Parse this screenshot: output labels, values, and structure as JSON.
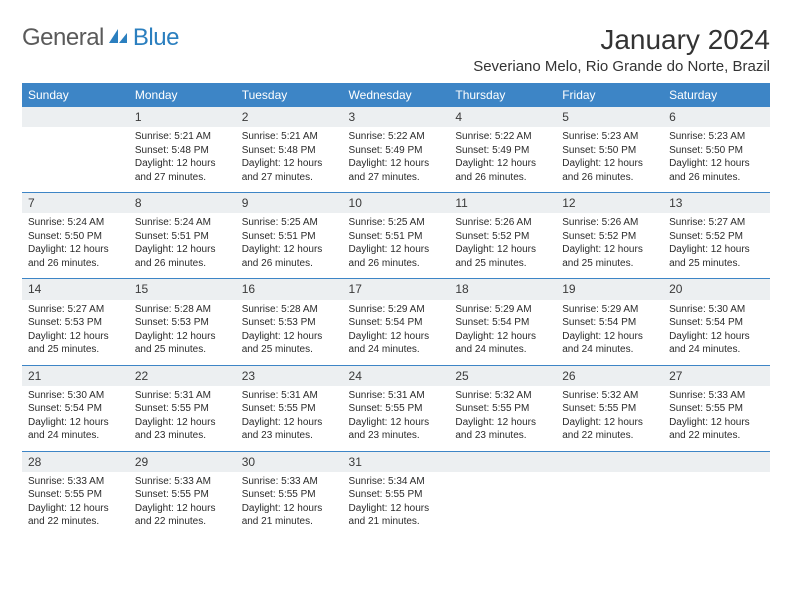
{
  "logo": {
    "part1": "General",
    "part2": "Blue"
  },
  "title": "January 2024",
  "location": "Severiano Melo, Rio Grande do Norte, Brazil",
  "colors": {
    "header_bg": "#3d85c6",
    "header_text": "#ffffff",
    "daynum_bg": "#eceff1",
    "row_border": "#3d85c6",
    "text": "#2b2b2b",
    "logo_gray": "#5a5a5a",
    "logo_blue": "#2b7fbf"
  },
  "day_headers": [
    "Sunday",
    "Monday",
    "Tuesday",
    "Wednesday",
    "Thursday",
    "Friday",
    "Saturday"
  ],
  "weeks": [
    {
      "nums": [
        "",
        "1",
        "2",
        "3",
        "4",
        "5",
        "6"
      ],
      "cells": [
        "",
        "Sunrise: 5:21 AM\nSunset: 5:48 PM\nDaylight: 12 hours and 27 minutes.",
        "Sunrise: 5:21 AM\nSunset: 5:48 PM\nDaylight: 12 hours and 27 minutes.",
        "Sunrise: 5:22 AM\nSunset: 5:49 PM\nDaylight: 12 hours and 27 minutes.",
        "Sunrise: 5:22 AM\nSunset: 5:49 PM\nDaylight: 12 hours and 26 minutes.",
        "Sunrise: 5:23 AM\nSunset: 5:50 PM\nDaylight: 12 hours and 26 minutes.",
        "Sunrise: 5:23 AM\nSunset: 5:50 PM\nDaylight: 12 hours and 26 minutes."
      ]
    },
    {
      "nums": [
        "7",
        "8",
        "9",
        "10",
        "11",
        "12",
        "13"
      ],
      "cells": [
        "Sunrise: 5:24 AM\nSunset: 5:50 PM\nDaylight: 12 hours and 26 minutes.",
        "Sunrise: 5:24 AM\nSunset: 5:51 PM\nDaylight: 12 hours and 26 minutes.",
        "Sunrise: 5:25 AM\nSunset: 5:51 PM\nDaylight: 12 hours and 26 minutes.",
        "Sunrise: 5:25 AM\nSunset: 5:51 PM\nDaylight: 12 hours and 26 minutes.",
        "Sunrise: 5:26 AM\nSunset: 5:52 PM\nDaylight: 12 hours and 25 minutes.",
        "Sunrise: 5:26 AM\nSunset: 5:52 PM\nDaylight: 12 hours and 25 minutes.",
        "Sunrise: 5:27 AM\nSunset: 5:52 PM\nDaylight: 12 hours and 25 minutes."
      ]
    },
    {
      "nums": [
        "14",
        "15",
        "16",
        "17",
        "18",
        "19",
        "20"
      ],
      "cells": [
        "Sunrise: 5:27 AM\nSunset: 5:53 PM\nDaylight: 12 hours and 25 minutes.",
        "Sunrise: 5:28 AM\nSunset: 5:53 PM\nDaylight: 12 hours and 25 minutes.",
        "Sunrise: 5:28 AM\nSunset: 5:53 PM\nDaylight: 12 hours and 25 minutes.",
        "Sunrise: 5:29 AM\nSunset: 5:54 PM\nDaylight: 12 hours and 24 minutes.",
        "Sunrise: 5:29 AM\nSunset: 5:54 PM\nDaylight: 12 hours and 24 minutes.",
        "Sunrise: 5:29 AM\nSunset: 5:54 PM\nDaylight: 12 hours and 24 minutes.",
        "Sunrise: 5:30 AM\nSunset: 5:54 PM\nDaylight: 12 hours and 24 minutes."
      ]
    },
    {
      "nums": [
        "21",
        "22",
        "23",
        "24",
        "25",
        "26",
        "27"
      ],
      "cells": [
        "Sunrise: 5:30 AM\nSunset: 5:54 PM\nDaylight: 12 hours and 24 minutes.",
        "Sunrise: 5:31 AM\nSunset: 5:55 PM\nDaylight: 12 hours and 23 minutes.",
        "Sunrise: 5:31 AM\nSunset: 5:55 PM\nDaylight: 12 hours and 23 minutes.",
        "Sunrise: 5:31 AM\nSunset: 5:55 PM\nDaylight: 12 hours and 23 minutes.",
        "Sunrise: 5:32 AM\nSunset: 5:55 PM\nDaylight: 12 hours and 23 minutes.",
        "Sunrise: 5:32 AM\nSunset: 5:55 PM\nDaylight: 12 hours and 22 minutes.",
        "Sunrise: 5:33 AM\nSunset: 5:55 PM\nDaylight: 12 hours and 22 minutes."
      ]
    },
    {
      "nums": [
        "28",
        "29",
        "30",
        "31",
        "",
        "",
        ""
      ],
      "cells": [
        "Sunrise: 5:33 AM\nSunset: 5:55 PM\nDaylight: 12 hours and 22 minutes.",
        "Sunrise: 5:33 AM\nSunset: 5:55 PM\nDaylight: 12 hours and 22 minutes.",
        "Sunrise: 5:33 AM\nSunset: 5:55 PM\nDaylight: 12 hours and 21 minutes.",
        "Sunrise: 5:34 AM\nSunset: 5:55 PM\nDaylight: 12 hours and 21 minutes.",
        "",
        "",
        ""
      ]
    }
  ]
}
